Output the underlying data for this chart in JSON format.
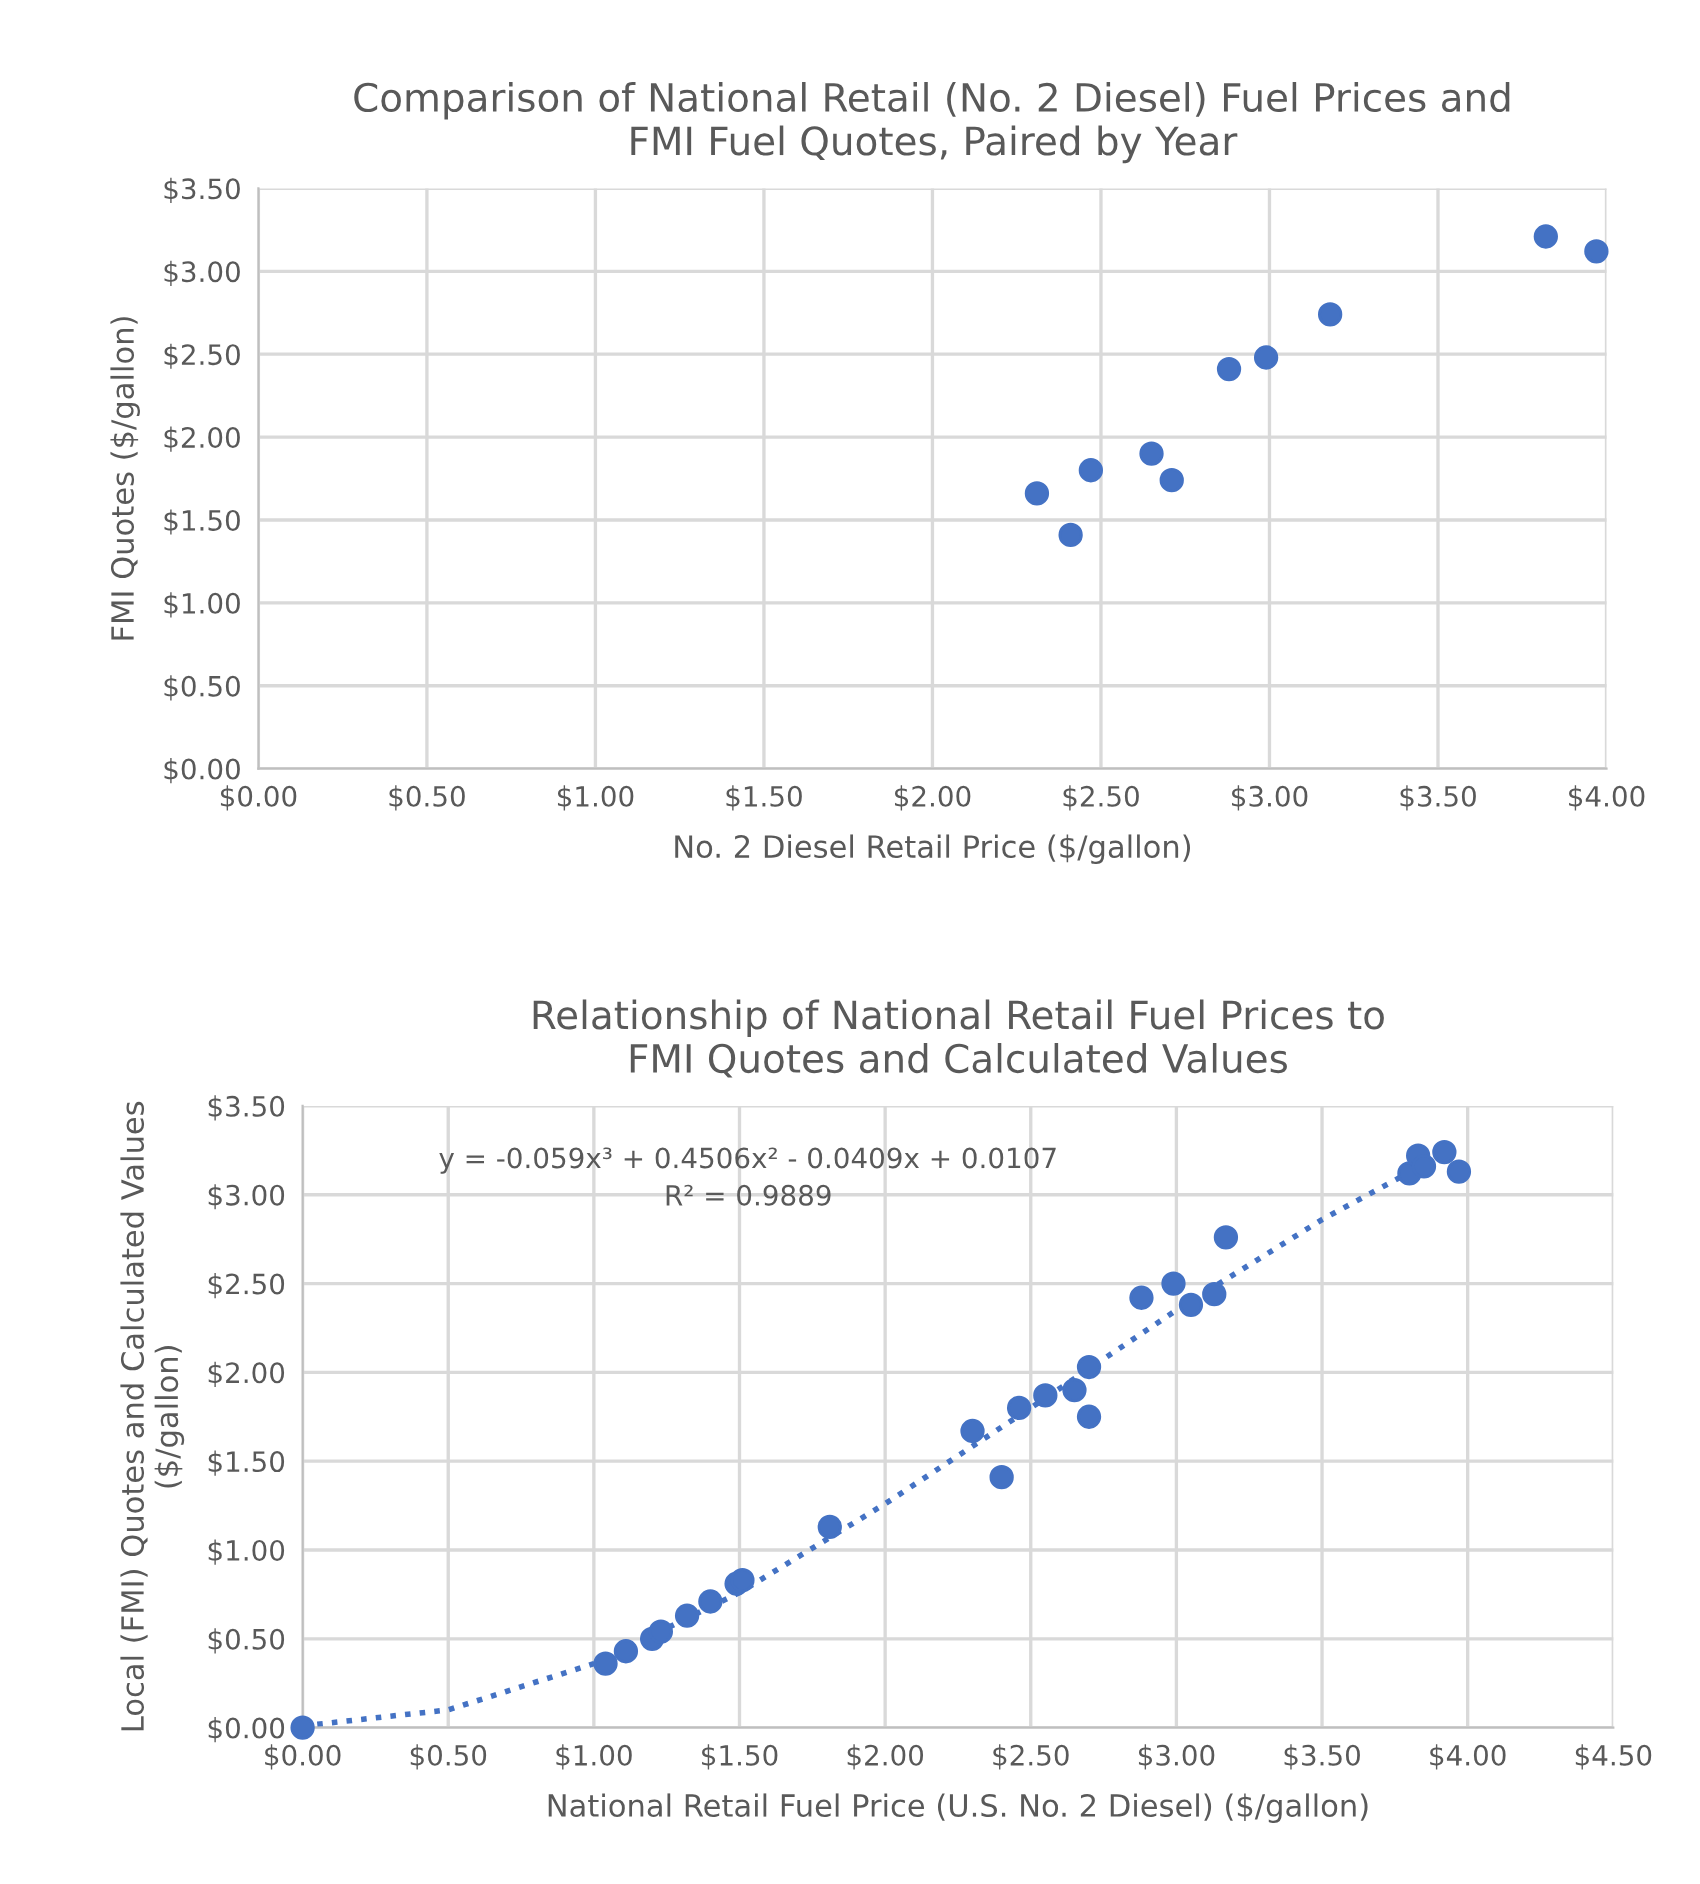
{
  "chart_data": [
    {
      "type": "scatter",
      "title": "Comparison of National Retail (No. 2 Diesel) Fuel Prices and\nFMI Fuel Quotes, Paired by Year",
      "xlabel": "No. 2 Diesel Retail Price ($/gallon)",
      "ylabel": "FMI Quotes ($/gallon)",
      "series": [
        {
          "color": "#4472c4",
          "x": [
            2.31,
            2.41,
            2.47,
            2.65,
            2.71,
            2.88,
            2.99,
            3.18,
            3.82,
            3.97
          ],
          "values": [
            1.66,
            1.41,
            1.8,
            1.9,
            1.74,
            2.41,
            2.48,
            2.74,
            3.21,
            3.12
          ]
        }
      ],
      "xlim": [
        0,
        4
      ],
      "ylim": [
        0,
        3.5
      ],
      "xticks": [
        {
          "value": 0,
          "label": "$0.00"
        },
        {
          "value": 0.5,
          "label": "$0.50"
        },
        {
          "value": 1,
          "label": "$1.00"
        },
        {
          "value": 1.5,
          "label": "$1.50"
        },
        {
          "value": 2,
          "label": "$2.00"
        },
        {
          "value": 2.5,
          "label": "$2.50"
        },
        {
          "value": 3,
          "label": "$3.00"
        },
        {
          "value": 3.5,
          "label": "$3.50"
        },
        {
          "value": 4,
          "label": "$4.00"
        }
      ],
      "yticks": [
        {
          "value": 0,
          "label": "$0.00"
        },
        {
          "value": 0.5,
          "label": "$0.50"
        },
        {
          "value": 1,
          "label": "$1.00"
        },
        {
          "value": 1.5,
          "label": "$1.50"
        },
        {
          "value": 2,
          "label": "$2.00"
        },
        {
          "value": 2.5,
          "label": "$2.50"
        },
        {
          "value": 3,
          "label": "$3.00"
        },
        {
          "value": 3.5,
          "label": "$3.50"
        }
      ],
      "grid": true,
      "marker": "circle"
    },
    {
      "type": "scatter",
      "title": "Relationship of National Retail Fuel Prices to\nFMI Quotes and Calculated Values",
      "xlabel": "National Retail Fuel Price (U.S. No. 2 Diesel) ($/gallon)",
      "ylabel": "Local (FMI) Quotes and Calculated Values\n($/gallon)",
      "series": [
        {
          "color": "#4472c4",
          "x": [
            0,
            1.04,
            1.11,
            1.2,
            1.23,
            1.32,
            1.4,
            1.49,
            1.51,
            1.81,
            2.3,
            2.4,
            2.46,
            2.55,
            2.65,
            2.7,
            2.7,
            2.88,
            2.99,
            3.05,
            3.13,
            3.17,
            3.8,
            3.83,
            3.85,
            3.92,
            3.97
          ],
          "values": [
            0,
            0.36,
            0.43,
            0.5,
            0.54,
            0.63,
            0.71,
            0.81,
            0.83,
            1.13,
            1.67,
            1.41,
            1.8,
            1.87,
            1.9,
            2.03,
            1.75,
            2.42,
            2.5,
            2.38,
            2.44,
            2.76,
            3.12,
            3.22,
            3.16,
            3.24,
            3.13
          ]
        },
        {
          "type": "line",
          "color": "#4472c4",
          "line_style": "dotted",
          "marker": "none",
          "x": [
            0,
            0.5,
            1,
            1.5,
            2,
            2.5,
            3,
            3.5,
            3.85
          ],
          "values": [
            0.01,
            0.1,
            0.36,
            0.76,
            1.26,
            1.8,
            2.35,
            2.86,
            3.17
          ]
        }
      ],
      "annotations": [
        "y = -0.059x³ + 0.4506x² - 0.0409x + 0.0107",
        "R² = 0.9889"
      ],
      "xlim": [
        0,
        4.5
      ],
      "ylim": [
        0,
        3.5
      ],
      "xticks": [
        {
          "value": 0,
          "label": "$0.00"
        },
        {
          "value": 0.5,
          "label": "$0.50"
        },
        {
          "value": 1,
          "label": "$1.00"
        },
        {
          "value": 1.5,
          "label": "$1.50"
        },
        {
          "value": 2,
          "label": "$2.00"
        },
        {
          "value": 2.5,
          "label": "$2.50"
        },
        {
          "value": 3,
          "label": "$3.00"
        },
        {
          "value": 3.5,
          "label": "$3.50"
        },
        {
          "value": 4,
          "label": "$4.00"
        },
        {
          "value": 4.5,
          "label": "$4.50"
        }
      ],
      "yticks": [
        {
          "value": 0,
          "label": "$0.00"
        },
        {
          "value": 0.5,
          "label": "$0.50"
        },
        {
          "value": 1,
          "label": "$1.00"
        },
        {
          "value": 1.5,
          "label": "$1.50"
        },
        {
          "value": 2,
          "label": "$2.00"
        },
        {
          "value": 2.5,
          "label": "$2.50"
        },
        {
          "value": 3,
          "label": "$3.00"
        },
        {
          "value": 3.5,
          "label": "$3.50"
        }
      ],
      "grid": true,
      "marker": "circle"
    }
  ]
}
